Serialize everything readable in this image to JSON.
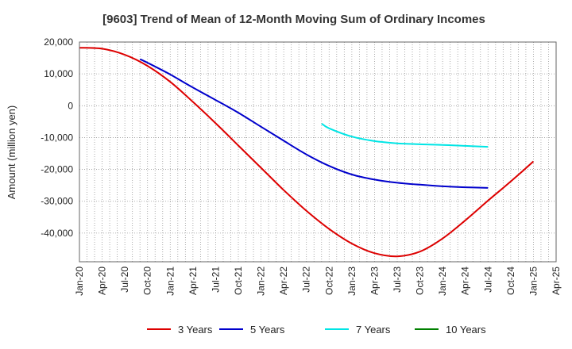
{
  "chart_data": {
    "type": "line",
    "title": "[9603]  Trend of Mean of 12-Month Moving Sum of Ordinary Incomes",
    "xlabel": "",
    "ylabel": "Amount (million yen)",
    "ylim": [
      -49000,
      20000
    ],
    "yticks": [
      20000,
      10000,
      0,
      -10000,
      -20000,
      -30000,
      -40000
    ],
    "ytick_labels": [
      "20,000",
      "10,000",
      "0",
      "-10,000",
      "-20,000",
      "-30,000",
      "-40,000"
    ],
    "x_categories": [
      "Jan-20",
      "Apr-20",
      "Jul-20",
      "Oct-20",
      "Jan-21",
      "Apr-21",
      "Jul-21",
      "Oct-21",
      "Jan-22",
      "Apr-22",
      "Jul-22",
      "Oct-22",
      "Jan-23",
      "Apr-23",
      "Jul-23",
      "Oct-23",
      "Jan-24",
      "Apr-24",
      "Jul-24",
      "Oct-24",
      "Jan-25",
      "Apr-25"
    ],
    "grid": true,
    "legend_position": "bottom",
    "series": [
      {
        "name": "3 Years",
        "color": "#dd0000",
        "points": [
          [
            0,
            18200
          ],
          [
            1,
            17900
          ],
          [
            2,
            16000
          ],
          [
            3,
            12500
          ],
          [
            4,
            7500
          ],
          [
            5,
            1200
          ],
          [
            6,
            -5500
          ],
          [
            7,
            -12500
          ],
          [
            8,
            -19500
          ],
          [
            9,
            -26500
          ],
          [
            10,
            -33000
          ],
          [
            11,
            -38700
          ],
          [
            12,
            -43300
          ],
          [
            13,
            -46300
          ],
          [
            14,
            -47300
          ],
          [
            15,
            -45800
          ],
          [
            16,
            -41700
          ],
          [
            17,
            -36000
          ],
          [
            18,
            -29800
          ],
          [
            19,
            -23800
          ],
          [
            20,
            -17500
          ]
        ]
      },
      {
        "name": "5 Years",
        "color": "#0000cc",
        "points": [
          [
            2.67,
            14600
          ],
          [
            3,
            13500
          ],
          [
            4,
            9800
          ],
          [
            5,
            5700
          ],
          [
            6,
            1800
          ],
          [
            7,
            -2200
          ],
          [
            8,
            -6600
          ],
          [
            9,
            -11000
          ],
          [
            10,
            -15300
          ],
          [
            11,
            -18900
          ],
          [
            12,
            -21600
          ],
          [
            13,
            -23200
          ],
          [
            14,
            -24200
          ],
          [
            15,
            -24800
          ],
          [
            16,
            -25300
          ],
          [
            17,
            -25600
          ],
          [
            18,
            -25800
          ]
        ]
      },
      {
        "name": "7 Years",
        "color": "#00e5e5",
        "points": [
          [
            10.67,
            -5600
          ],
          [
            11,
            -7100
          ],
          [
            12,
            -9700
          ],
          [
            13,
            -11100
          ],
          [
            14,
            -11800
          ],
          [
            15,
            -12100
          ],
          [
            16,
            -12300
          ],
          [
            17,
            -12600
          ],
          [
            18,
            -12900
          ]
        ]
      },
      {
        "name": "10 Years",
        "color": "#008000",
        "points": []
      }
    ]
  }
}
